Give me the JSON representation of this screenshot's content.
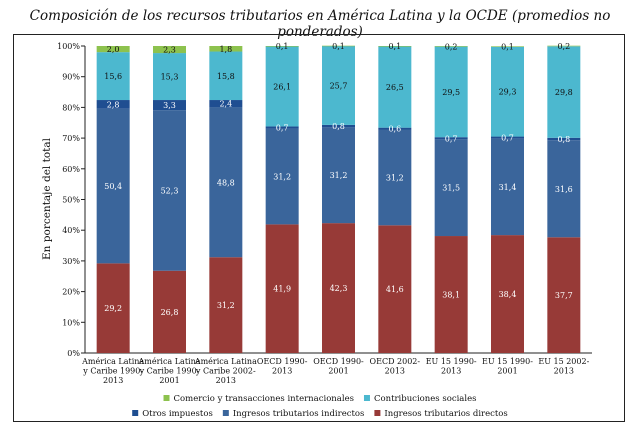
{
  "chart_data": {
    "type": "bar",
    "stacked": true,
    "title": "Composición de los recursos tributarios en América Latina y la OCDE (promedios no ponderados)",
    "ylabel": "En porcentaje del total",
    "ylim": [
      0,
      100
    ],
    "yticks": [
      "0%",
      "10%",
      "20%",
      "30%",
      "40%",
      "50%",
      "60%",
      "70%",
      "80%",
      "90%",
      "100%"
    ],
    "categories": [
      [
        "América Latina",
        "y Caribe 1990-",
        "2013"
      ],
      [
        "América Latina",
        "y Caribe 1990-",
        "2001"
      ],
      [
        "América Latina",
        "y Caribe 2002-",
        "2013"
      ],
      [
        "OECD 1990-",
        "2013"
      ],
      [
        "OECD 1990-",
        "2001"
      ],
      [
        "OECD 2002-",
        "2013"
      ],
      [
        "EU 15 1990-",
        "2013"
      ],
      [
        "EU 15 1990-",
        "2001"
      ],
      [
        "EU 15 2002-",
        "2013"
      ]
    ],
    "series": [
      {
        "name": "Ingresos tributarios directos",
        "color": "#973a37",
        "label_color": "light",
        "values": [
          29.2,
          26.8,
          31.2,
          41.9,
          42.3,
          41.6,
          38.1,
          38.4,
          37.7
        ],
        "labels": [
          "29,2",
          "26,8",
          "31,2",
          "41,9",
          "42,3",
          "41,6",
          "38,1",
          "38,4",
          "37,7"
        ]
      },
      {
        "name": "Ingresos tributarios indirectos",
        "color": "#3a659b",
        "label_color": "light",
        "values": [
          50.4,
          52.3,
          48.8,
          31.2,
          31.2,
          31.2,
          31.5,
          31.4,
          31.6
        ],
        "labels": [
          "50,4",
          "52,3",
          "48,8",
          "31,2",
          "31,2",
          "31,2",
          "31,5",
          "31,4",
          "31,6"
        ]
      },
      {
        "name": "Otros impuestos",
        "color": "#1f4e91",
        "label_color": "light",
        "values": [
          2.8,
          3.3,
          2.4,
          0.7,
          0.8,
          0.6,
          0.7,
          0.7,
          0.8
        ],
        "labels": [
          "2,8",
          "3,3",
          "2,4",
          "0,7",
          "0,8",
          "0,6",
          "0,7",
          "0,7",
          "0,8"
        ]
      },
      {
        "name": "Contribuciones sociales",
        "color": "#4cb8cf",
        "label_color": "dark",
        "values": [
          15.6,
          15.3,
          15.8,
          26.1,
          25.7,
          26.5,
          29.5,
          29.3,
          29.8
        ],
        "labels": [
          "15,6",
          "15,3",
          "15,8",
          "26,1",
          "25,7",
          "26,5",
          "29,5",
          "29,3",
          "29,8"
        ]
      },
      {
        "name": "Comercio y transacciones internacionales",
        "color": "#8dc24e",
        "label_color": "dark",
        "values": [
          2.0,
          2.3,
          1.8,
          0.1,
          0.1,
          0.1,
          0.2,
          0.1,
          0.2
        ],
        "labels": [
          "2,0",
          "2,3",
          "1,8",
          "0,1",
          "0,1",
          "0,1",
          "0,2",
          "0,1",
          "0,2"
        ]
      }
    ],
    "legend": {
      "placement": "bottom",
      "rows": [
        [
          "Comercio y transacciones internacionales",
          "Contribuciones sociales"
        ],
        [
          "Otros impuestos",
          "Ingresos tributarios indirectos",
          "Ingresos tributarios directos"
        ]
      ]
    }
  }
}
